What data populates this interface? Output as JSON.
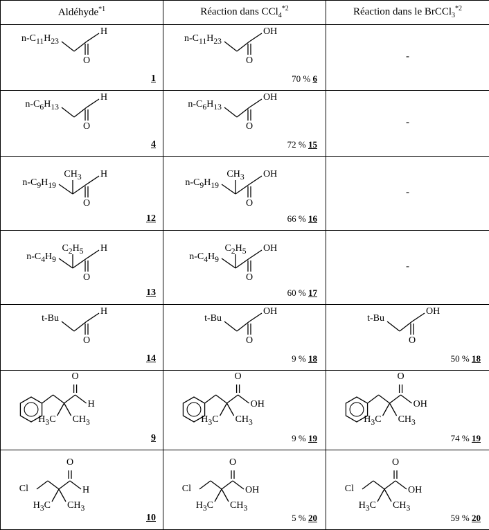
{
  "headers": {
    "col1_label": "Aldéhyde",
    "col1_sup": "*1",
    "col2_prefix": "Réaction dans CCl",
    "col2_sub": "4",
    "col2_sup": "*2",
    "col3_prefix": "Réaction dans le BrCCl",
    "col3_sub": "3",
    "col3_sup": "*2"
  },
  "rows": [
    {
      "kind": "linear",
      "substituent_html": "n-C<sub>11</sub>H<sub>23</sub>",
      "ald_num": "1",
      "acid_num": "6",
      "ccl4_yield": "70 %",
      "brccl3_yield": null
    },
    {
      "kind": "linear",
      "substituent_html": "n-C<sub>6</sub>H<sub>13</sub>",
      "ald_num": "4",
      "acid_num": "15",
      "ccl4_yield": "72 %",
      "brccl3_yield": null
    },
    {
      "kind": "alpha_branched",
      "substituent_html": "n-C<sub>9</sub>H<sub>19</sub>",
      "branch_html": "CH<sub>3</sub>",
      "ald_num": "12",
      "acid_num": "16",
      "ccl4_yield": "66 %",
      "brccl3_yield": null
    },
    {
      "kind": "alpha_branched",
      "substituent_html": "n-C<sub>4</sub>H<sub>9</sub>",
      "branch_html": "C<sub>2</sub>H<sub>5</sub>",
      "ald_num": "13",
      "acid_num": "17",
      "ccl4_yield": "60 %",
      "brccl3_yield": null
    },
    {
      "kind": "linear",
      "substituent_html": "t-Bu",
      "ald_num": "14",
      "acid_num": "18",
      "ccl4_yield": "9 %",
      "brccl3_yield": "50 %"
    },
    {
      "kind": "dimethyl_benzyl",
      "ald_num": "9",
      "acid_num": "19",
      "ccl4_yield": "9 %",
      "brccl3_yield": "74 %"
    },
    {
      "kind": "dimethyl_cl",
      "ald_num": "10",
      "acid_num": "20",
      "ccl4_yield": "5 %",
      "brccl3_yield": "59 %"
    }
  ],
  "labels": {
    "H": "H",
    "OH": "OH",
    "O": "O",
    "H3C": "H3C",
    "CH3": "CH3",
    "Cl": "Cl"
  },
  "colors": {
    "stroke": "#000000",
    "bg": "#ffffff"
  }
}
